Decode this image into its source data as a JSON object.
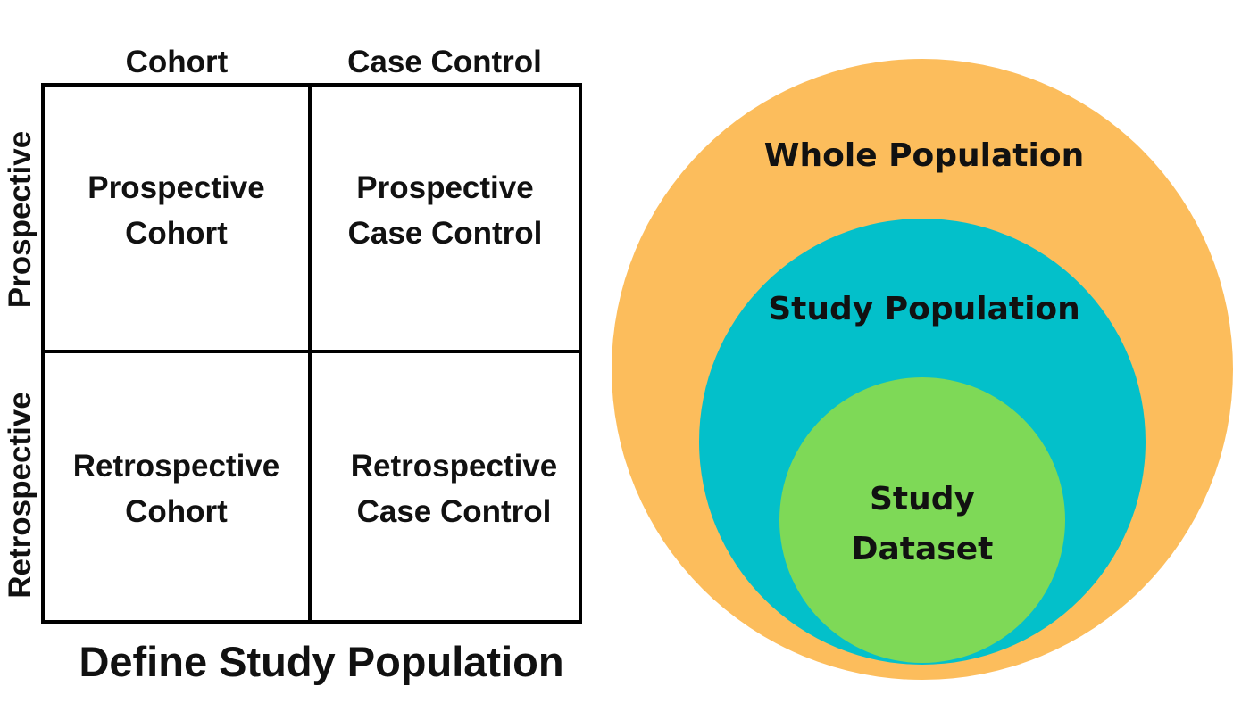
{
  "design_grid": {
    "column_headers": [
      "Cohort",
      "Case Control"
    ],
    "row_headers": [
      "Prospective",
      "Retrospective"
    ],
    "cells": [
      {
        "line1": "Prospective",
        "line2": "Cohort"
      },
      {
        "line1": "Prospective",
        "line2": "Case Control"
      },
      {
        "line1": "Retrospective",
        "line2": "Cohort"
      },
      {
        "line1": "Retrospective",
        "line2": "Case Control"
      }
    ],
    "title": "Define Study Population"
  },
  "population_diagram": {
    "outer": {
      "label": "Whole Population",
      "color": "#fcbd5c"
    },
    "middle": {
      "label": "Study Population",
      "color": "#03c0ca"
    },
    "inner": {
      "label_line1": "Study",
      "label_line2": "Dataset",
      "color": "#7ed957"
    }
  }
}
